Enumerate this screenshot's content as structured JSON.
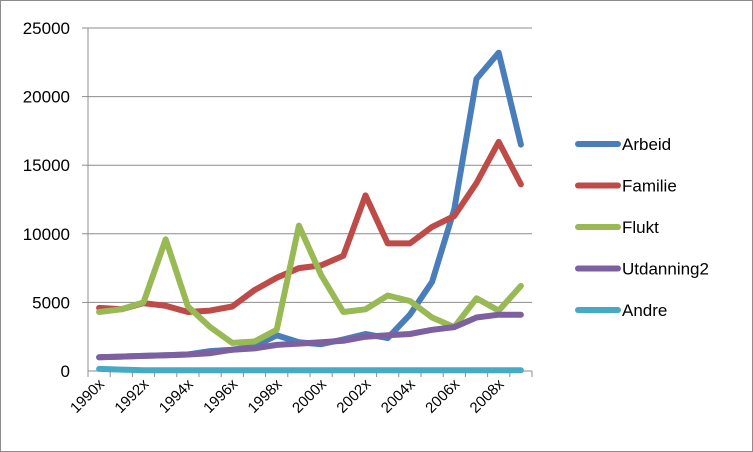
{
  "chart_data": {
    "type": "line",
    "title": "",
    "xlabel": "",
    "ylabel": "",
    "ylim": [
      0,
      25000
    ],
    "yticks": [
      0,
      5000,
      10000,
      15000,
      20000,
      25000
    ],
    "grid": "horizontal",
    "legend_position": "right",
    "categories": [
      "1990x",
      "1991x",
      "1992x",
      "1993x",
      "1994x",
      "1995x",
      "1996x",
      "1997x",
      "1998x",
      "1999x",
      "2000x",
      "2001x",
      "2002x",
      "2003x",
      "2004x",
      "2005x",
      "2006x",
      "2007x",
      "2008x",
      "2009x"
    ],
    "xtick_labels": [
      "1990x",
      "1992x",
      "1994x",
      "1996x",
      "1998x",
      "2000x",
      "2002x",
      "2004x",
      "2006x",
      "2008x"
    ],
    "series": [
      {
        "name": "Arbeid",
        "color": "#4a7ebb",
        "values": [
          1000,
          1050,
          1100,
          1150,
          1200,
          1450,
          1550,
          1800,
          2600,
          2100,
          1950,
          2300,
          2700,
          2400,
          4100,
          6500,
          11800,
          21300,
          23200,
          16500
        ]
      },
      {
        "name": "Familie",
        "color": "#be4b48",
        "values": [
          4600,
          4500,
          4950,
          4750,
          4300,
          4400,
          4700,
          5900,
          6800,
          7500,
          7700,
          8400,
          12800,
          9300,
          9300,
          10500,
          11300,
          13700,
          16700,
          13600
        ]
      },
      {
        "name": "Flukt",
        "color": "#98b954",
        "values": [
          4300,
          4500,
          5000,
          9600,
          4700,
          3200,
          2050,
          2150,
          3000,
          10600,
          7000,
          4300,
          4500,
          5500,
          5100,
          3900,
          3200,
          5300,
          4400,
          6200
        ]
      },
      {
        "name": "Utdanning2",
        "color": "#7d60a0",
        "values": [
          1000,
          1050,
          1100,
          1150,
          1200,
          1300,
          1550,
          1650,
          1900,
          2000,
          2100,
          2200,
          2500,
          2600,
          2700,
          3000,
          3200,
          3900,
          4100,
          4100
        ]
      },
      {
        "name": "Andre",
        "color": "#46aac5",
        "values": [
          150,
          100,
          50,
          50,
          50,
          50,
          50,
          50,
          50,
          50,
          50,
          50,
          50,
          50,
          50,
          50,
          50,
          50,
          50,
          50
        ]
      }
    ]
  }
}
